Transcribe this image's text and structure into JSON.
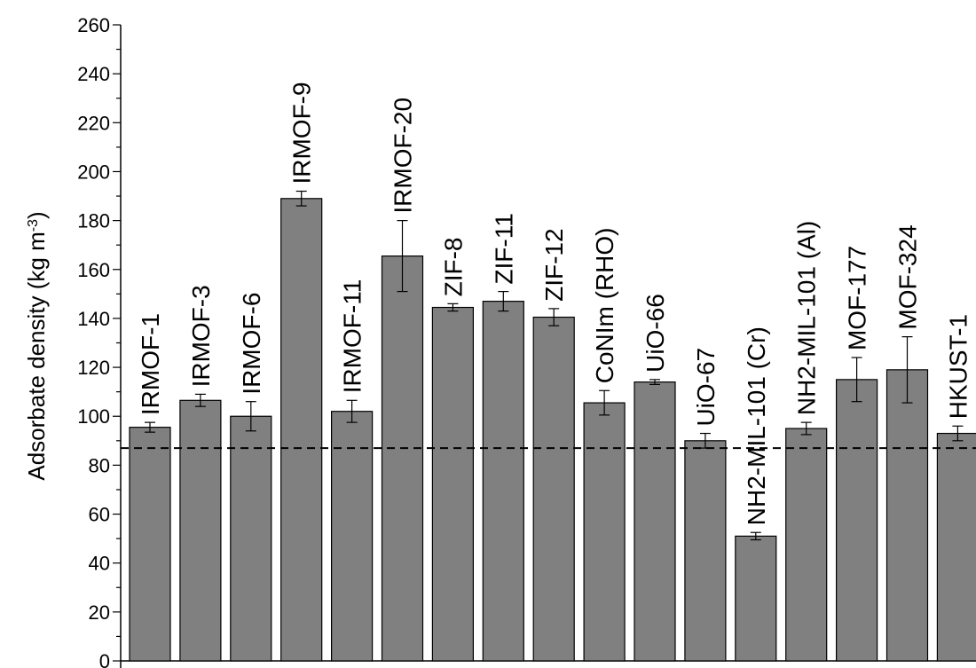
{
  "chart_data": {
    "type": "bar",
    "ylabel": "Adsorbate density (kg m",
    "ylabel_sup": "-3",
    "ylabel_end": ")",
    "ylim": [
      0,
      260
    ],
    "yticks": [
      "0",
      "20",
      "40",
      "60",
      "80",
      "100",
      "120",
      "140",
      "160",
      "180",
      "200",
      "220",
      "240",
      "260"
    ],
    "categories": [
      "IRMOF-1",
      "IRMOF-3",
      "IRMOF-6",
      "IRMOF-9",
      "IRMOF-11",
      "IRMOF-20",
      "ZIF-8",
      "ZIF-11",
      "ZIF-12",
      "CoNIm (RHO)",
      "UiO-66",
      "UiO-67",
      "NH2-MIL-101 (Cr)",
      "NH2-MIL-101 (Al)",
      "MOF-177",
      "MOF-324",
      "HKUST-1"
    ],
    "values": [
      95.5,
      106.5,
      100,
      189,
      102,
      165.5,
      144.5,
      147,
      140.5,
      105.5,
      114,
      90,
      51,
      95,
      115,
      119,
      93
    ],
    "errors": [
      2,
      2.5,
      6,
      3,
      4.5,
      14.5,
      1.5,
      4,
      3.5,
      5,
      1,
      3,
      1.5,
      2.5,
      9,
      13.5,
      3
    ],
    "reference_line": 87,
    "bar_color": "#808080",
    "grid": false
  }
}
